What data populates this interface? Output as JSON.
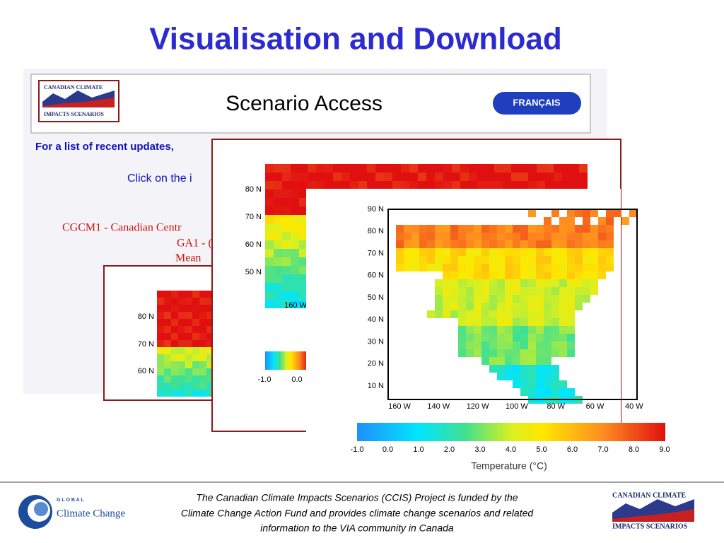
{
  "title": "Visualisation and Download",
  "screenshot": {
    "logo": [
      "CANADIAN CLIMATE",
      "IMPACTS SCENARIOS"
    ],
    "heading": "Scenario Access",
    "language_button": "FRANÇAIS",
    "lines": [
      "For a list of recent updates,",
      "Click on the i"
    ],
    "model_lines": [
      "CGCM1 - Canadian Centr",
      "GA1 - (",
      "Mean"
    ]
  },
  "map_back": {
    "lat_labels": [
      "80 N",
      "70 N",
      "60 N"
    ]
  },
  "map_middle": {
    "lat_labels": [
      "80 N",
      "70 N",
      "60 N",
      "50 N"
    ],
    "lon_labels": [
      "160 W"
    ],
    "scale_labels": [
      "-1.0",
      "0.0"
    ]
  },
  "map_front": {
    "lat_labels": [
      "90 N",
      "80 N",
      "70 N",
      "60 N",
      "50 N",
      "40 N",
      "30 N",
      "20 N",
      "10 N"
    ],
    "lon_labels": [
      "160 W",
      "140 W",
      "120 W",
      "100 W",
      "80 W",
      "60 W",
      "40 W"
    ],
    "scale_labels": [
      "-1.0",
      "0.0",
      "1.0",
      "2.0",
      "3.0",
      "4.0",
      "5.0",
      "6.0",
      "7.0",
      "8.0",
      "9.0"
    ],
    "scale_title": "Temperature (°C)"
  },
  "footer": {
    "text": [
      "The Canadian Climate Impacts Scenarios (CCIS) Project is funded by the",
      "Climate Change Action Fund and provides climate change scenarios and related",
      "information to the VIA community in Canada"
    ],
    "left_logo": [
      "G L O B A L",
      "Climate Change"
    ],
    "right_logo": [
      "CANADIAN CLIMATE",
      "IMPACTS SCENARIOS"
    ]
  }
}
